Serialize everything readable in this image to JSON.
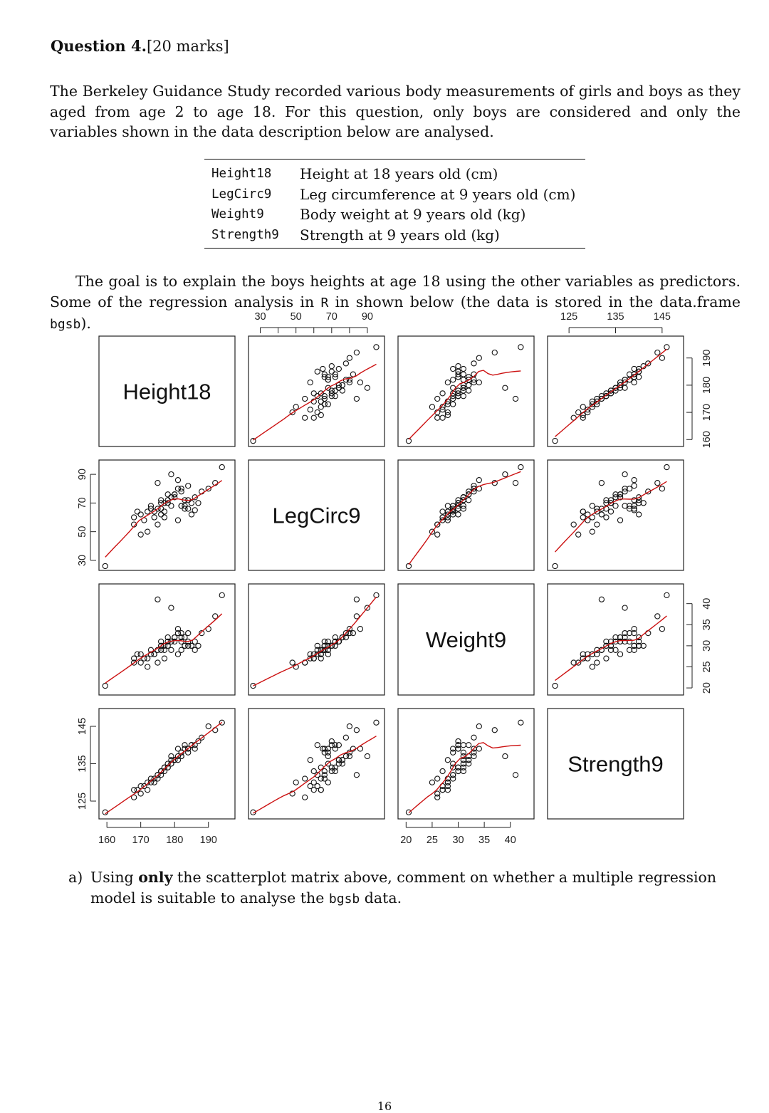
{
  "question": {
    "title": "Question 4.",
    "marks": "[20 marks]"
  },
  "intro": "The Berkeley Guidance Study recorded various body measurements of girls and boys as they aged from age 2 to age 18. For this question, only boys are considered and only the variables shown in the data description below are analysed.",
  "variables": [
    {
      "name": "Height18",
      "desc": "Height at 18 years old (cm)"
    },
    {
      "name": "LegCirc9",
      "desc": "Leg circumference at 9 years old (cm)"
    },
    {
      "name": "Weight9",
      "desc": "Body weight at 9 years old (kg)"
    },
    {
      "name": "Strength9",
      "desc": "Strength at 9 years old (kg)"
    }
  ],
  "goal": {
    "part1": "The goal is to explain the boys heights at age 18 using the other variables as predictors. Some of the regression analysis in ",
    "r": "R",
    "part2": " in shown below (the data is stored in the data.frame ",
    "df": "bgsb",
    "part3": ")."
  },
  "chart_data": {
    "type": "scatter",
    "subtype": "scatterplot-matrix",
    "panels": [
      "Height18",
      "LegCirc9",
      "Weight9",
      "Strength9"
    ],
    "smoother_color": "#cc1111",
    "point_style": "open-circle",
    "axes": {
      "Height18": {
        "range": [
          158.5,
          197
        ],
        "ticks": [
          160,
          170,
          180,
          190
        ]
      },
      "LegCirc9": {
        "range": [
          25,
          98
        ],
        "ticks": [
          30,
          50,
          70,
          90
        ],
        "minor_ticks": [
          40,
          60,
          80
        ]
      },
      "Weight9": {
        "range": [
          19,
          44
        ],
        "ticks": [
          20,
          25,
          30,
          35,
          40
        ]
      },
      "Strength9": {
        "range": [
          121,
          149
        ],
        "ticks": [
          125,
          135,
          145
        ]
      }
    },
    "data": {
      "Height18": [
        159.5,
        170,
        172,
        176,
        178,
        182,
        188,
        192,
        194,
        168,
        174,
        175,
        178,
        180,
        182,
        185,
        171,
        173,
        176,
        177,
        179,
        181,
        183,
        184,
        186,
        187,
        169,
        172,
        175,
        177,
        179,
        180,
        182,
        184,
        185,
        174,
        176,
        178,
        181,
        183,
        168,
        170,
        173,
        176,
        179,
        180,
        182,
        184,
        186,
        190,
        181,
        177,
        175,
        179,
        183
      ],
      "LegCirc9": [
        26,
        48,
        64,
        62,
        70,
        68,
        78,
        84,
        95,
        55,
        60,
        66,
        72,
        76,
        80,
        62,
        58,
        68,
        66,
        70,
        74,
        86,
        72,
        66,
        65,
        70,
        64,
        50,
        55,
        60,
        68,
        74,
        78,
        82,
        70,
        64,
        72,
        76,
        80,
        68,
        60,
        62,
        66,
        70,
        74,
        76,
        68,
        72,
        74,
        80,
        58,
        64,
        84,
        90,
        66
      ],
      "Weight9": [
        20.5,
        26,
        27,
        29,
        30,
        31,
        33,
        37,
        42,
        26,
        28,
        29,
        31,
        32,
        33,
        30,
        27,
        28,
        30,
        30,
        31,
        34,
        32,
        31,
        29,
        30,
        28,
        25,
        26,
        27,
        29,
        31,
        32,
        33,
        30,
        28,
        31,
        32,
        33,
        30,
        27,
        28,
        29,
        30,
        31,
        32,
        29,
        30,
        31,
        34,
        28,
        29,
        41,
        39,
        30
      ],
      "Strength9": [
        122,
        127,
        128,
        132,
        134,
        137,
        142,
        144,
        146,
        126,
        130,
        132,
        134,
        136,
        138,
        140,
        129,
        130,
        133,
        134,
        136,
        139,
        140,
        138,
        139,
        141,
        128,
        130,
        131,
        133,
        135,
        136,
        137,
        139,
        140,
        131,
        133,
        135,
        137,
        139,
        128,
        129,
        131,
        133,
        135,
        136,
        138,
        139,
        140,
        145,
        136,
        134,
        132,
        137,
        139
      ]
    }
  },
  "part_a": {
    "label": "a)",
    "text1": "Using ",
    "bold": "only",
    "text2": " the scatterplot matrix above, comment on whether a multiple regression model is suitable to analyse the ",
    "df": "bgsb",
    "text3": " data."
  },
  "page_number": "16"
}
